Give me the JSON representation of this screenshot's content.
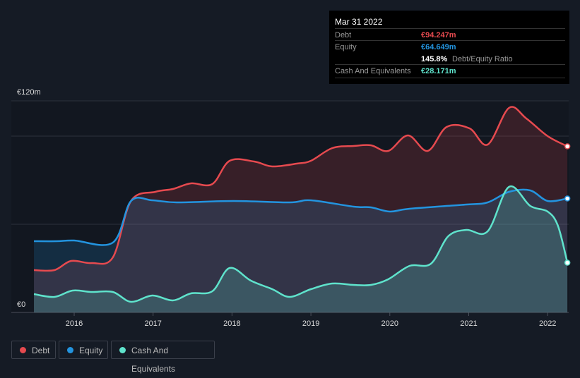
{
  "tooltip": {
    "date": "Mar 31 2022",
    "debt_label": "Debt",
    "debt_value": "€94.247m",
    "equity_label": "Equity",
    "equity_value": "€64.649m",
    "ratio_value": "145.8%",
    "ratio_label": "Debt/Equity Ratio",
    "cash_label": "Cash And Equivalents",
    "cash_value": "€28.171m"
  },
  "legend": [
    {
      "label": "Debt",
      "color": "#e64a4f"
    },
    {
      "label": "Equity",
      "color": "#2394df"
    },
    {
      "label": "Cash And Equivalents",
      "color": "#5fe3cc"
    }
  ],
  "chart_data": {
    "type": "area",
    "ylabel_top": "€120m",
    "ylabel_bottom": "€0",
    "ylim": [
      0,
      120
    ],
    "xlim": [
      2015.35,
      2022.28
    ],
    "xticks": [
      "2016",
      "2017",
      "2018",
      "2019",
      "2020",
      "2021",
      "2022"
    ],
    "series": [
      {
        "name": "Debt",
        "color": "#e64a4f",
        "points": [
          [
            2015.49,
            24
          ],
          [
            2015.75,
            24
          ],
          [
            2015.96,
            29.2
          ],
          [
            2016.22,
            28
          ],
          [
            2016.49,
            31.2
          ],
          [
            2016.72,
            63.2
          ],
          [
            2017.03,
            68.4
          ],
          [
            2017.25,
            70
          ],
          [
            2017.48,
            73.2
          ],
          [
            2017.75,
            72.8
          ],
          [
            2017.97,
            86
          ],
          [
            2018.28,
            85.6
          ],
          [
            2018.51,
            82.8
          ],
          [
            2018.82,
            84.4
          ],
          [
            2019.0,
            86
          ],
          [
            2019.27,
            93.2
          ],
          [
            2019.54,
            94.4
          ],
          [
            2019.76,
            94.8
          ],
          [
            2019.98,
            91.6
          ],
          [
            2020.23,
            100.4
          ],
          [
            2020.48,
            91.6
          ],
          [
            2020.72,
            105.2
          ],
          [
            2021.01,
            104.4
          ],
          [
            2021.24,
            95.2
          ],
          [
            2021.51,
            116
          ],
          [
            2021.73,
            110
          ],
          [
            2022.0,
            100
          ],
          [
            2022.25,
            94.2
          ]
        ]
      },
      {
        "name": "Equity",
        "color": "#2394df",
        "points": [
          [
            2015.49,
            40.4
          ],
          [
            2015.78,
            40.4
          ],
          [
            2016.0,
            40.8
          ],
          [
            2016.49,
            39.6
          ],
          [
            2016.72,
            63.2
          ],
          [
            2016.99,
            63.6
          ],
          [
            2017.3,
            62.4
          ],
          [
            2018.02,
            63.2
          ],
          [
            2018.73,
            62.4
          ],
          [
            2019.0,
            63.6
          ],
          [
            2019.54,
            60
          ],
          [
            2019.76,
            59.6
          ],
          [
            2020.0,
            57.2
          ],
          [
            2020.25,
            58.8
          ],
          [
            2020.97,
            61.2
          ],
          [
            2021.24,
            62.4
          ],
          [
            2021.51,
            68.4
          ],
          [
            2021.78,
            69.2
          ],
          [
            2022.0,
            63.2
          ],
          [
            2022.25,
            64.6
          ]
        ]
      },
      {
        "name": "Cash And Equivalents",
        "color": "#5fe3cc",
        "points": [
          [
            2015.49,
            10.4
          ],
          [
            2015.75,
            8.8
          ],
          [
            2015.98,
            12.4
          ],
          [
            2016.22,
            11.6
          ],
          [
            2016.49,
            11.6
          ],
          [
            2016.72,
            6
          ],
          [
            2016.99,
            9.6
          ],
          [
            2017.25,
            6.8
          ],
          [
            2017.48,
            10.8
          ],
          [
            2017.75,
            12
          ],
          [
            2017.97,
            25.2
          ],
          [
            2018.24,
            18
          ],
          [
            2018.51,
            13.2
          ],
          [
            2018.73,
            8.8
          ],
          [
            2019.0,
            13.2
          ],
          [
            2019.27,
            16.4
          ],
          [
            2019.54,
            15.6
          ],
          [
            2019.76,
            15.6
          ],
          [
            2019.98,
            18.8
          ],
          [
            2020.25,
            26.4
          ],
          [
            2020.52,
            27.6
          ],
          [
            2020.74,
            43.2
          ],
          [
            2020.97,
            46.8
          ],
          [
            2021.24,
            46
          ],
          [
            2021.51,
            71.2
          ],
          [
            2021.78,
            60.4
          ],
          [
            2022.0,
            57.2
          ],
          [
            2022.13,
            49.2
          ],
          [
            2022.25,
            28.2
          ]
        ]
      }
    ]
  }
}
